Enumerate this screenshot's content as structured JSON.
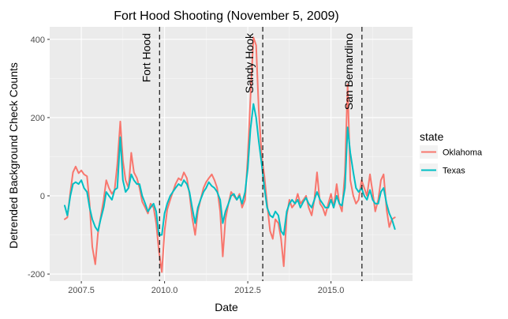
{
  "chart_data": {
    "type": "line",
    "title": "Fort Hood Shooting (November 5, 2009)",
    "xlabel": "Date",
    "ylabel": "Detrended Background Check Counts",
    "xlim": [
      2006.55,
      2017.45
    ],
    "ylim": [
      -218,
      432
    ],
    "x_ticks": [
      2007.5,
      2010.0,
      2012.5,
      2015.0
    ],
    "x_tick_labels": [
      "2007.5",
      "2010.0",
      "2012.5",
      "2015.0"
    ],
    "y_ticks": [
      -200,
      0,
      200,
      400
    ],
    "y_tick_labels": [
      "-200",
      "0",
      "200",
      "400"
    ],
    "grid": true,
    "legend": {
      "title": "state",
      "position": "right"
    },
    "events": [
      {
        "label": "Fort Hood",
        "x": 2009.85
      },
      {
        "label": "Sandy Hook",
        "x": 2012.95
      },
      {
        "label": "San Bernardino",
        "x": 2015.93
      }
    ],
    "series": [
      {
        "name": "Oklahoma",
        "color": "#F8766D",
        "x": [
          2007.0,
          2007.08,
          2007.17,
          2007.25,
          2007.33,
          2007.42,
          2007.5,
          2007.58,
          2007.67,
          2007.75,
          2007.83,
          2007.92,
          2008.0,
          2008.08,
          2008.17,
          2008.25,
          2008.33,
          2008.42,
          2008.5,
          2008.58,
          2008.67,
          2008.75,
          2008.83,
          2008.92,
          2009.0,
          2009.08,
          2009.17,
          2009.25,
          2009.33,
          2009.42,
          2009.5,
          2009.58,
          2009.67,
          2009.75,
          2009.83,
          2009.92,
          2010.0,
          2010.08,
          2010.17,
          2010.25,
          2010.33,
          2010.42,
          2010.5,
          2010.58,
          2010.67,
          2010.75,
          2010.83,
          2010.92,
          2011.0,
          2011.08,
          2011.17,
          2011.25,
          2011.33,
          2011.42,
          2011.5,
          2011.58,
          2011.67,
          2011.75,
          2011.83,
          2011.92,
          2012.0,
          2012.08,
          2012.17,
          2012.25,
          2012.33,
          2012.42,
          2012.5,
          2012.58,
          2012.67,
          2012.75,
          2012.83,
          2012.92,
          2013.0,
          2013.08,
          2013.17,
          2013.25,
          2013.33,
          2013.42,
          2013.5,
          2013.58,
          2013.67,
          2013.75,
          2013.83,
          2013.92,
          2014.0,
          2014.08,
          2014.17,
          2014.25,
          2014.33,
          2014.42,
          2014.5,
          2014.58,
          2014.67,
          2014.75,
          2014.83,
          2014.92,
          2015.0,
          2015.08,
          2015.17,
          2015.25,
          2015.33,
          2015.42,
          2015.5,
          2015.58,
          2015.67,
          2015.75,
          2015.83,
          2015.92,
          2016.0,
          2016.08,
          2016.17,
          2016.25,
          2016.33,
          2016.42,
          2016.5,
          2016.58,
          2016.67,
          2016.75,
          2016.83,
          2016.92
        ],
        "values": [
          -60,
          -55,
          10,
          60,
          75,
          58,
          65,
          55,
          50,
          -20,
          -130,
          -175,
          -95,
          -55,
          -10,
          40,
          20,
          5,
          15,
          80,
          190,
          90,
          40,
          20,
          110,
          60,
          45,
          20,
          -15,
          -30,
          -45,
          -20,
          -30,
          -70,
          -140,
          -195,
          -90,
          -35,
          -10,
          10,
          30,
          45,
          40,
          60,
          45,
          5,
          -55,
          -100,
          -40,
          -10,
          20,
          35,
          45,
          55,
          40,
          20,
          -40,
          -155,
          -60,
          -20,
          10,
          0,
          -10,
          5,
          -30,
          -10,
          100,
          250,
          405,
          385,
          220,
          100,
          50,
          -20,
          -90,
          -110,
          -60,
          -70,
          -110,
          -180,
          -50,
          -10,
          -30,
          -20,
          5,
          -20,
          -10,
          0,
          -30,
          -50,
          -10,
          60,
          -20,
          -30,
          -50,
          -20,
          5,
          -30,
          30,
          -20,
          -40,
          60,
          285,
          40,
          0,
          -20,
          -10,
          40,
          20,
          0,
          55,
          10,
          -40,
          -10,
          40,
          55,
          -35,
          -80,
          -60,
          -55
        ]
      },
      {
        "name": "Texas",
        "color": "#00BFC4",
        "x": [
          2007.0,
          2007.08,
          2007.17,
          2007.25,
          2007.33,
          2007.42,
          2007.5,
          2007.58,
          2007.67,
          2007.75,
          2007.83,
          2007.92,
          2008.0,
          2008.08,
          2008.17,
          2008.25,
          2008.33,
          2008.42,
          2008.5,
          2008.58,
          2008.67,
          2008.75,
          2008.83,
          2008.92,
          2009.0,
          2009.08,
          2009.17,
          2009.25,
          2009.33,
          2009.42,
          2009.5,
          2009.58,
          2009.67,
          2009.75,
          2009.83,
          2009.92,
          2010.0,
          2010.08,
          2010.17,
          2010.25,
          2010.33,
          2010.42,
          2010.5,
          2010.58,
          2010.67,
          2010.75,
          2010.83,
          2010.92,
          2011.0,
          2011.08,
          2011.17,
          2011.25,
          2011.33,
          2011.42,
          2011.5,
          2011.58,
          2011.67,
          2011.75,
          2011.83,
          2011.92,
          2012.0,
          2012.08,
          2012.17,
          2012.25,
          2012.33,
          2012.42,
          2012.5,
          2012.58,
          2012.67,
          2012.75,
          2012.83,
          2012.92,
          2013.0,
          2013.08,
          2013.17,
          2013.25,
          2013.33,
          2013.42,
          2013.5,
          2013.58,
          2013.67,
          2013.75,
          2013.83,
          2013.92,
          2014.0,
          2014.08,
          2014.17,
          2014.25,
          2014.33,
          2014.42,
          2014.5,
          2014.58,
          2014.67,
          2014.75,
          2014.83,
          2014.92,
          2015.0,
          2015.08,
          2015.17,
          2015.25,
          2015.33,
          2015.42,
          2015.5,
          2015.58,
          2015.67,
          2015.75,
          2015.83,
          2015.92,
          2016.0,
          2016.08,
          2016.17,
          2016.25,
          2016.33,
          2016.42,
          2016.5,
          2016.58,
          2016.67,
          2016.75,
          2016.83,
          2016.92
        ],
        "values": [
          -25,
          -50,
          0,
          30,
          35,
          30,
          40,
          20,
          10,
          -30,
          -60,
          -80,
          -90,
          -60,
          -30,
          10,
          0,
          -10,
          15,
          20,
          150,
          40,
          10,
          20,
          55,
          40,
          30,
          30,
          0,
          -20,
          -40,
          -30,
          -20,
          -40,
          -100,
          -100,
          -45,
          -20,
          0,
          10,
          20,
          30,
          25,
          40,
          30,
          10,
          -30,
          -70,
          -30,
          -10,
          10,
          20,
          35,
          25,
          20,
          10,
          -10,
          -70,
          -40,
          -20,
          0,
          5,
          -10,
          0,
          -20,
          10,
          70,
          170,
          235,
          200,
          140,
          80,
          20,
          -30,
          -50,
          -55,
          -40,
          -50,
          -90,
          -100,
          -40,
          -20,
          -10,
          -20,
          -10,
          -30,
          -15,
          -5,
          -20,
          -30,
          -10,
          10,
          -10,
          -20,
          -30,
          -30,
          -10,
          -30,
          0,
          -20,
          -25,
          20,
          175,
          110,
          60,
          20,
          10,
          20,
          0,
          -10,
          15,
          -10,
          -20,
          -20,
          10,
          20,
          -20,
          -45,
          -60,
          -85
        ]
      }
    ]
  }
}
